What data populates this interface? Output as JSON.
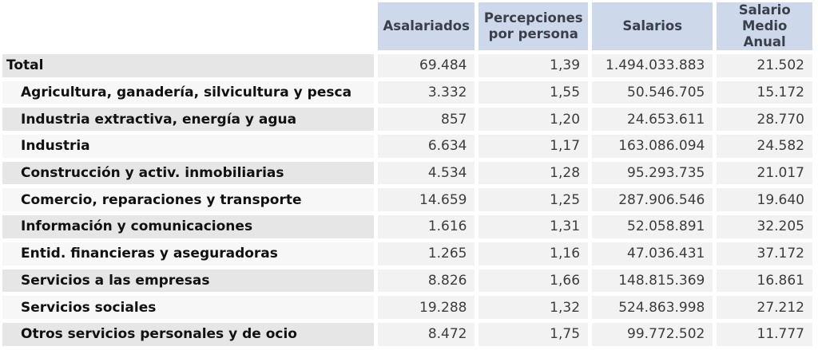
{
  "table": {
    "headers": [
      "Asalariados",
      "Percepciones por persona",
      "Salarios",
      "Salario Medio Anual"
    ],
    "header_lines": [
      [
        "Asalariados"
      ],
      [
        "Percepciones",
        "por persona"
      ],
      [
        "Salarios"
      ],
      [
        "Salario",
        "Medio Anual"
      ]
    ],
    "rows": [
      {
        "label": "Total",
        "level": 0,
        "asalariados": "69.484",
        "percepciones": "1,39",
        "salarios": "1.494.033.883",
        "salario_medio": "21.502"
      },
      {
        "label": "Agricultura, ganadería, silvicultura y pesca",
        "level": 1,
        "asalariados": "3.332",
        "percepciones": "1,55",
        "salarios": "50.546.705",
        "salario_medio": "15.172"
      },
      {
        "label": "Industria extractiva, energía y agua",
        "level": 1,
        "asalariados": "857",
        "percepciones": "1,20",
        "salarios": "24.653.611",
        "salario_medio": "28.770"
      },
      {
        "label": "Industria",
        "level": 1,
        "asalariados": "6.634",
        "percepciones": "1,17",
        "salarios": "163.086.094",
        "salario_medio": "24.582"
      },
      {
        "label": "Construcción y activ. inmobiliarias",
        "level": 1,
        "asalariados": "4.534",
        "percepciones": "1,28",
        "salarios": "95.293.735",
        "salario_medio": "21.017"
      },
      {
        "label": "Comercio, reparaciones y transporte",
        "level": 1,
        "asalariados": "14.659",
        "percepciones": "1,25",
        "salarios": "287.906.546",
        "salario_medio": "19.640"
      },
      {
        "label": "Información y comunicaciones",
        "level": 1,
        "asalariados": "1.616",
        "percepciones": "1,31",
        "salarios": "52.058.891",
        "salario_medio": "32.205"
      },
      {
        "label": "Entid. financieras y aseguradoras",
        "level": 1,
        "asalariados": "1.265",
        "percepciones": "1,16",
        "salarios": "47.036.431",
        "salario_medio": "37.172"
      },
      {
        "label": "Servicios a las empresas",
        "level": 1,
        "asalariados": "8.826",
        "percepciones": "1,66",
        "salarios": "148.815.369",
        "salario_medio": "16.861"
      },
      {
        "label": "Servicios sociales",
        "level": 1,
        "asalariados": "19.288",
        "percepciones": "1,32",
        "salarios": "524.863.998",
        "salario_medio": "27.212"
      },
      {
        "label": "Otros servicios personales y de ocio",
        "level": 1,
        "asalariados": "8.472",
        "percepciones": "1,75",
        "salarios": "99.772.502",
        "salario_medio": "11.777"
      }
    ]
  },
  "colors": {
    "header_bg": "#cdd9ea",
    "header_text": "#3a3f4a",
    "label_bg_odd": "#e6e6e6",
    "label_bg_even": "#f7f7f7",
    "value_bg": "#f2f2f2"
  }
}
